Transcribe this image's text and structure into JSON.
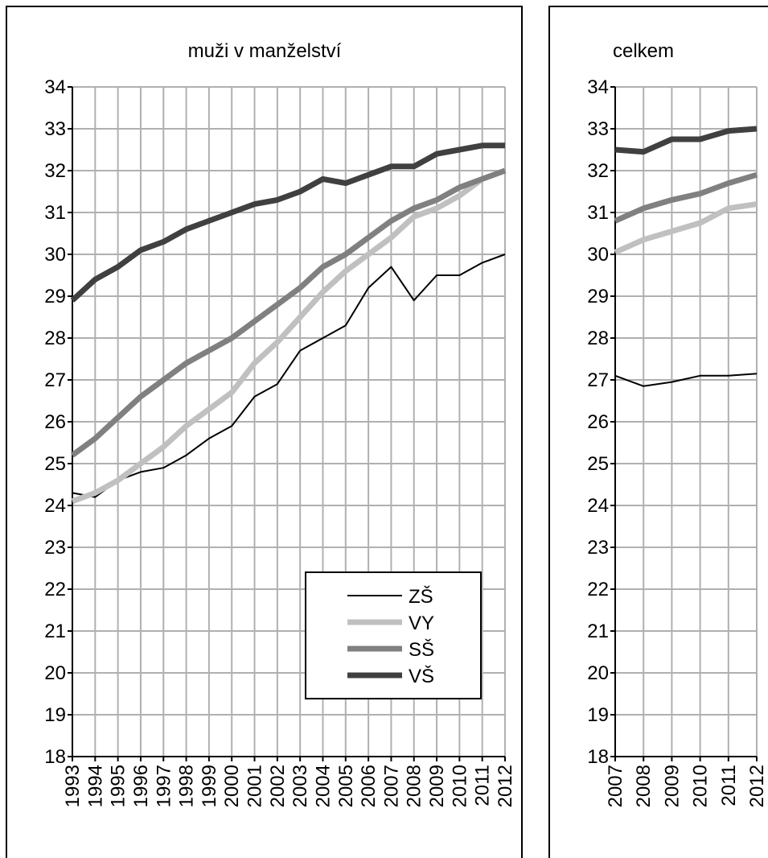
{
  "chart_data": [
    {
      "type": "line",
      "title": "muži v manželství",
      "x": [
        1993,
        1994,
        1995,
        1996,
        1997,
        1998,
        1999,
        2000,
        2001,
        2002,
        2003,
        2004,
        2005,
        2006,
        2007,
        2008,
        2009,
        2010,
        2011,
        2012
      ],
      "ylim": [
        18,
        34
      ],
      "y_ticks": [
        18,
        19,
        20,
        21,
        22,
        23,
        24,
        25,
        26,
        27,
        28,
        29,
        30,
        31,
        32,
        33,
        34
      ],
      "grid": true,
      "legend": "bottom-right",
      "series": [
        {
          "name": "ZŠ",
          "color": "#000000",
          "width": 2,
          "values": [
            24.3,
            24.2,
            24.6,
            24.8,
            24.9,
            25.2,
            25.6,
            25.9,
            26.6,
            26.9,
            27.7,
            28.0,
            28.3,
            29.2,
            29.7,
            28.9,
            29.5,
            29.5,
            29.8,
            30.0
          ]
        },
        {
          "name": "VY",
          "color": "#c0c0c0",
          "width": 7,
          "values": [
            24.1,
            24.3,
            24.6,
            25.0,
            25.4,
            25.9,
            26.3,
            26.7,
            27.4,
            27.9,
            28.5,
            29.1,
            29.6,
            30.0,
            30.4,
            30.9,
            31.1,
            31.4,
            31.8,
            32.0
          ]
        },
        {
          "name": "SŠ",
          "color": "#808080",
          "width": 7,
          "values": [
            25.2,
            25.6,
            26.1,
            26.6,
            27.0,
            27.4,
            27.7,
            28.0,
            28.4,
            28.8,
            29.2,
            29.7,
            30.0,
            30.4,
            30.8,
            31.1,
            31.3,
            31.6,
            31.8,
            32.0
          ]
        },
        {
          "name": "VŠ",
          "color": "#404040",
          "width": 7,
          "values": [
            28.9,
            29.4,
            29.7,
            30.1,
            30.3,
            30.6,
            30.8,
            31.0,
            31.2,
            31.3,
            31.5,
            31.8,
            31.7,
            31.9,
            32.1,
            32.1,
            32.4,
            32.5,
            32.6,
            32.6
          ]
        }
      ]
    },
    {
      "type": "line",
      "title": "celkem",
      "x": [
        2007,
        2008,
        2009,
        2010,
        2011,
        2012
      ],
      "ylim": [
        18,
        34
      ],
      "y_ticks": [
        18,
        19,
        20,
        21,
        22,
        23,
        24,
        25,
        26,
        27,
        28,
        29,
        30,
        31,
        32,
        33,
        34
      ],
      "grid": true,
      "series": [
        {
          "color": "#000000",
          "width": 2,
          "values": [
            27.1,
            26.85,
            26.95,
            27.1,
            27.1,
            27.15
          ]
        },
        {
          "color": "#c0c0c0",
          "width": 7,
          "values": [
            30.05,
            30.35,
            30.55,
            30.75,
            31.1,
            31.2
          ]
        },
        {
          "color": "#808080",
          "width": 7,
          "values": [
            30.8,
            31.1,
            31.3,
            31.45,
            31.7,
            31.9
          ]
        },
        {
          "color": "#404040",
          "width": 7,
          "values": [
            32.5,
            32.45,
            32.75,
            32.75,
            32.95,
            33.0
          ]
        }
      ]
    }
  ]
}
